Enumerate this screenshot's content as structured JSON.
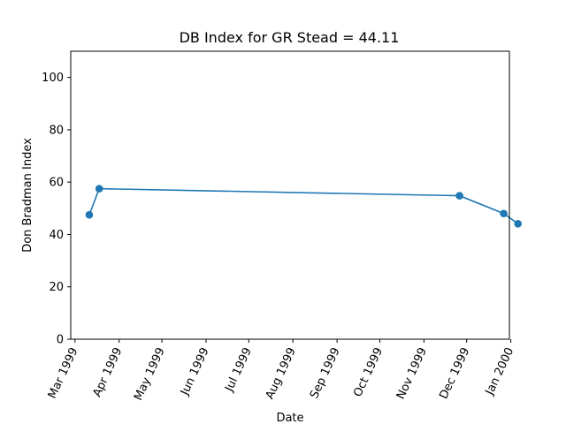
{
  "chart_data": {
    "type": "line",
    "title": "DB Index for GR Stead = 44.11",
    "xlabel": "Date",
    "ylabel": "Don Bradman Index",
    "ylim": [
      0,
      110
    ],
    "xlim": [
      "1999-02-26",
      "1999-12-31"
    ],
    "grid": false,
    "series": [
      {
        "color": "#1f77b4",
        "points": [
          {
            "x": "1999-03-11",
            "y": 47.5
          },
          {
            "x": "1999-03-18",
            "y": 57.5
          },
          {
            "x": "1999-11-26",
            "y": 54.8
          },
          {
            "x": "1999-12-27",
            "y": 48.0
          },
          {
            "x": "2000-01-06",
            "y": 44.11
          }
        ]
      }
    ],
    "x_ticks": [
      {
        "date": "1999-03-01",
        "label": "Mar 1999"
      },
      {
        "date": "1999-04-01",
        "label": "Apr 1999"
      },
      {
        "date": "1999-05-01",
        "label": "May 1999"
      },
      {
        "date": "1999-06-01",
        "label": "Jun 1999"
      },
      {
        "date": "1999-07-01",
        "label": "Jul 1999"
      },
      {
        "date": "1999-08-01",
        "label": "Aug 1999"
      },
      {
        "date": "1999-09-01",
        "label": "Sep 1999"
      },
      {
        "date": "1999-10-01",
        "label": "Oct 1999"
      },
      {
        "date": "1999-11-01",
        "label": "Nov 1999"
      },
      {
        "date": "1999-12-01",
        "label": "Dec 1999"
      },
      {
        "date": "2000-01-01",
        "label": "Jan 2000"
      }
    ],
    "y_ticks": [
      0,
      20,
      40,
      60,
      80,
      100
    ]
  }
}
